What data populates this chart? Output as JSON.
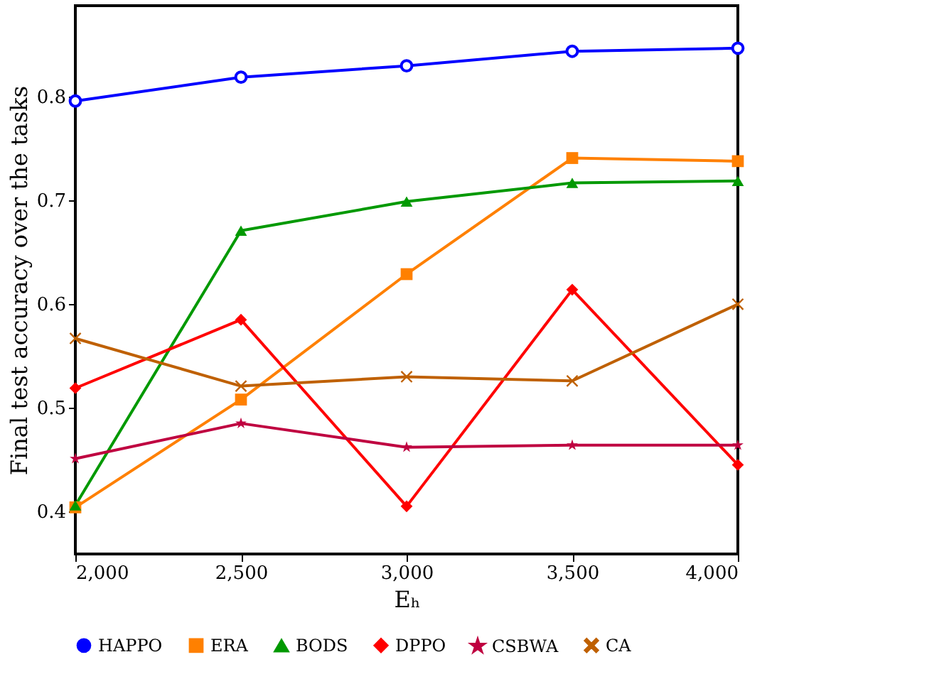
{
  "chart_data": {
    "type": "line",
    "xlabel": "Eₕ",
    "ylabel": "Final test accuracy over the tasks",
    "x": [
      2000,
      2500,
      3000,
      3500,
      4000
    ],
    "series": [
      {
        "name": "HAPPO",
        "color": "#0000ff",
        "marker": "circle",
        "values": [
          0.796,
          0.819,
          0.83,
          0.844,
          0.847
        ]
      },
      {
        "name": "ERA",
        "color": "#ff8000",
        "marker": "square",
        "values": [
          0.404,
          0.508,
          0.629,
          0.741,
          0.738
        ]
      },
      {
        "name": "BODS",
        "color": "#009900",
        "marker": "triangle",
        "values": [
          0.406,
          0.671,
          0.699,
          0.717,
          0.719
        ]
      },
      {
        "name": "DPPO",
        "color": "#ff0000",
        "marker": "diamond",
        "values": [
          0.519,
          0.585,
          0.405,
          0.614,
          0.445
        ]
      },
      {
        "name": "CSBWA",
        "color": "#bf0040",
        "marker": "star",
        "values": [
          0.451,
          0.485,
          0.462,
          0.464,
          0.464
        ]
      },
      {
        "name": "CA",
        "color": "#bf6000",
        "marker": "cross",
        "values": [
          0.567,
          0.521,
          0.53,
          0.526,
          0.6
        ]
      }
    ],
    "xlim": [
      2000,
      4000
    ],
    "xticks": [
      {
        "value": 2000,
        "label": "2,000"
      },
      {
        "value": 2500,
        "label": "2,500"
      },
      {
        "value": 3000,
        "label": "3,000"
      },
      {
        "value": 3500,
        "label": "3,500"
      },
      {
        "value": 4000,
        "label": "4,000"
      }
    ],
    "ylim": [
      0.359,
      0.888
    ],
    "yticks": [
      {
        "value": 0.4,
        "label": "0.4"
      },
      {
        "value": 0.5,
        "label": "0.5"
      },
      {
        "value": 0.6,
        "label": "0.6"
      },
      {
        "value": 0.7,
        "label": "0.7"
      },
      {
        "value": 0.8,
        "label": "0.8"
      }
    ],
    "grid": false,
    "legend": "bottom",
    "line_style": "solid"
  }
}
